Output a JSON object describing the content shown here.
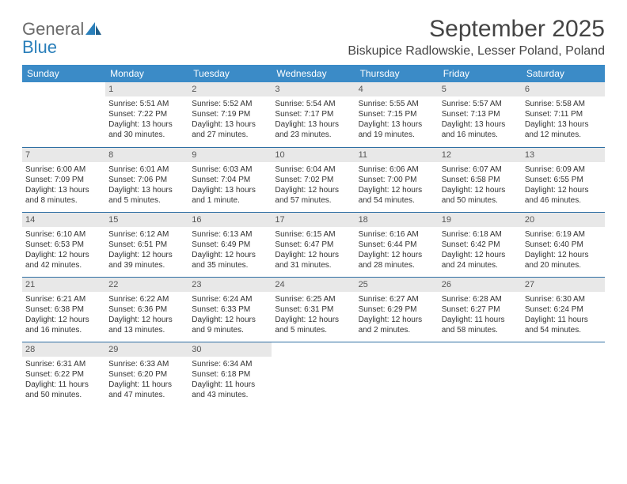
{
  "logo": {
    "general": "General",
    "blue": "Blue"
  },
  "title": "September 2025",
  "location": "Biskupice Radlowskie, Lesser Poland, Poland",
  "daynames": [
    "Sunday",
    "Monday",
    "Tuesday",
    "Wednesday",
    "Thursday",
    "Friday",
    "Saturday"
  ],
  "colors": {
    "header_bg": "#3b8bc7",
    "header_text": "#ffffff",
    "row_divider": "#2f6fa3",
    "daynum_bg": "#e8e8e8",
    "text": "#333333",
    "logo_gray": "#6a6a6a",
    "logo_blue": "#2a7fba"
  },
  "weeks": [
    [
      null,
      {
        "n": "1",
        "sr": "Sunrise: 5:51 AM",
        "ss": "Sunset: 7:22 PM",
        "d1": "Daylight: 13 hours",
        "d2": "and 30 minutes."
      },
      {
        "n": "2",
        "sr": "Sunrise: 5:52 AM",
        "ss": "Sunset: 7:19 PM",
        "d1": "Daylight: 13 hours",
        "d2": "and 27 minutes."
      },
      {
        "n": "3",
        "sr": "Sunrise: 5:54 AM",
        "ss": "Sunset: 7:17 PM",
        "d1": "Daylight: 13 hours",
        "d2": "and 23 minutes."
      },
      {
        "n": "4",
        "sr": "Sunrise: 5:55 AM",
        "ss": "Sunset: 7:15 PM",
        "d1": "Daylight: 13 hours",
        "d2": "and 19 minutes."
      },
      {
        "n": "5",
        "sr": "Sunrise: 5:57 AM",
        "ss": "Sunset: 7:13 PM",
        "d1": "Daylight: 13 hours",
        "d2": "and 16 minutes."
      },
      {
        "n": "6",
        "sr": "Sunrise: 5:58 AM",
        "ss": "Sunset: 7:11 PM",
        "d1": "Daylight: 13 hours",
        "d2": "and 12 minutes."
      }
    ],
    [
      {
        "n": "7",
        "sr": "Sunrise: 6:00 AM",
        "ss": "Sunset: 7:09 PM",
        "d1": "Daylight: 13 hours",
        "d2": "and 8 minutes."
      },
      {
        "n": "8",
        "sr": "Sunrise: 6:01 AM",
        "ss": "Sunset: 7:06 PM",
        "d1": "Daylight: 13 hours",
        "d2": "and 5 minutes."
      },
      {
        "n": "9",
        "sr": "Sunrise: 6:03 AM",
        "ss": "Sunset: 7:04 PM",
        "d1": "Daylight: 13 hours",
        "d2": "and 1 minute."
      },
      {
        "n": "10",
        "sr": "Sunrise: 6:04 AM",
        "ss": "Sunset: 7:02 PM",
        "d1": "Daylight: 12 hours",
        "d2": "and 57 minutes."
      },
      {
        "n": "11",
        "sr": "Sunrise: 6:06 AM",
        "ss": "Sunset: 7:00 PM",
        "d1": "Daylight: 12 hours",
        "d2": "and 54 minutes."
      },
      {
        "n": "12",
        "sr": "Sunrise: 6:07 AM",
        "ss": "Sunset: 6:58 PM",
        "d1": "Daylight: 12 hours",
        "d2": "and 50 minutes."
      },
      {
        "n": "13",
        "sr": "Sunrise: 6:09 AM",
        "ss": "Sunset: 6:55 PM",
        "d1": "Daylight: 12 hours",
        "d2": "and 46 minutes."
      }
    ],
    [
      {
        "n": "14",
        "sr": "Sunrise: 6:10 AM",
        "ss": "Sunset: 6:53 PM",
        "d1": "Daylight: 12 hours",
        "d2": "and 42 minutes."
      },
      {
        "n": "15",
        "sr": "Sunrise: 6:12 AM",
        "ss": "Sunset: 6:51 PM",
        "d1": "Daylight: 12 hours",
        "d2": "and 39 minutes."
      },
      {
        "n": "16",
        "sr": "Sunrise: 6:13 AM",
        "ss": "Sunset: 6:49 PM",
        "d1": "Daylight: 12 hours",
        "d2": "and 35 minutes."
      },
      {
        "n": "17",
        "sr": "Sunrise: 6:15 AM",
        "ss": "Sunset: 6:47 PM",
        "d1": "Daylight: 12 hours",
        "d2": "and 31 minutes."
      },
      {
        "n": "18",
        "sr": "Sunrise: 6:16 AM",
        "ss": "Sunset: 6:44 PM",
        "d1": "Daylight: 12 hours",
        "d2": "and 28 minutes."
      },
      {
        "n": "19",
        "sr": "Sunrise: 6:18 AM",
        "ss": "Sunset: 6:42 PM",
        "d1": "Daylight: 12 hours",
        "d2": "and 24 minutes."
      },
      {
        "n": "20",
        "sr": "Sunrise: 6:19 AM",
        "ss": "Sunset: 6:40 PM",
        "d1": "Daylight: 12 hours",
        "d2": "and 20 minutes."
      }
    ],
    [
      {
        "n": "21",
        "sr": "Sunrise: 6:21 AM",
        "ss": "Sunset: 6:38 PM",
        "d1": "Daylight: 12 hours",
        "d2": "and 16 minutes."
      },
      {
        "n": "22",
        "sr": "Sunrise: 6:22 AM",
        "ss": "Sunset: 6:36 PM",
        "d1": "Daylight: 12 hours",
        "d2": "and 13 minutes."
      },
      {
        "n": "23",
        "sr": "Sunrise: 6:24 AM",
        "ss": "Sunset: 6:33 PM",
        "d1": "Daylight: 12 hours",
        "d2": "and 9 minutes."
      },
      {
        "n": "24",
        "sr": "Sunrise: 6:25 AM",
        "ss": "Sunset: 6:31 PM",
        "d1": "Daylight: 12 hours",
        "d2": "and 5 minutes."
      },
      {
        "n": "25",
        "sr": "Sunrise: 6:27 AM",
        "ss": "Sunset: 6:29 PM",
        "d1": "Daylight: 12 hours",
        "d2": "and 2 minutes."
      },
      {
        "n": "26",
        "sr": "Sunrise: 6:28 AM",
        "ss": "Sunset: 6:27 PM",
        "d1": "Daylight: 11 hours",
        "d2": "and 58 minutes."
      },
      {
        "n": "27",
        "sr": "Sunrise: 6:30 AM",
        "ss": "Sunset: 6:24 PM",
        "d1": "Daylight: 11 hours",
        "d2": "and 54 minutes."
      }
    ],
    [
      {
        "n": "28",
        "sr": "Sunrise: 6:31 AM",
        "ss": "Sunset: 6:22 PM",
        "d1": "Daylight: 11 hours",
        "d2": "and 50 minutes."
      },
      {
        "n": "29",
        "sr": "Sunrise: 6:33 AM",
        "ss": "Sunset: 6:20 PM",
        "d1": "Daylight: 11 hours",
        "d2": "and 47 minutes."
      },
      {
        "n": "30",
        "sr": "Sunrise: 6:34 AM",
        "ss": "Sunset: 6:18 PM",
        "d1": "Daylight: 11 hours",
        "d2": "and 43 minutes."
      },
      null,
      null,
      null,
      null
    ]
  ]
}
